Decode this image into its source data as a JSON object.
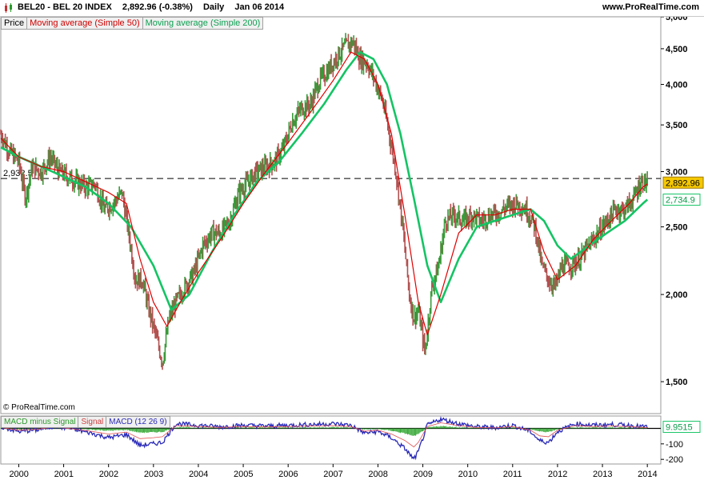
{
  "header": {
    "ticker": "BEL20 - BEL 20 INDEX",
    "quote": "2,892.96 (-0.38%)",
    "period": "Daily",
    "date": "Jan 06 2014",
    "site": "www.ProRealTime.com"
  },
  "legend": {
    "price": "Price",
    "ma50": "Moving average (Simple 50)",
    "ma200": "Moving average (Simple 200)"
  },
  "macd_legend": {
    "hist": "MACD minus Signal",
    "signal": "Signal",
    "macd": "MACD (12 26 9)"
  },
  "copyright": "© ProRealTime.com",
  "colors": {
    "up_candle": "#3a9a3a",
    "down_candle": "#b35050",
    "ma50": "#e00000",
    "ma200": "#14c464",
    "macd": "#2a2ab8",
    "signal": "#e05050",
    "hist": "#3aaa3a"
  },
  "chart_data": {
    "type": "line",
    "title": "BEL20 - BEL 20 INDEX",
    "y_scale": "log",
    "ylim": [
      1350,
      5000
    ],
    "y_ticks": [
      1500,
      2000,
      2500,
      3000,
      3500,
      4000,
      4500,
      5000
    ],
    "y_tick_labels": [
      "1,500",
      "2,000",
      "2,500",
      "3,000",
      "3,500",
      "4,000",
      "4,500",
      "5,000"
    ],
    "x_ticks": [
      2000,
      2001,
      2002,
      2003,
      2004,
      2005,
      2006,
      2007,
      2008,
      2009,
      2010,
      2011,
      2012,
      2013,
      2014
    ],
    "x_tick_labels": [
      "2000",
      "2001",
      "2002",
      "2003",
      "2004",
      "2005",
      "2006",
      "2007",
      "2008",
      "2009",
      "2010",
      "2011",
      "2012",
      "2013",
      "2014"
    ],
    "xlim": [
      1999.6,
      2014.3
    ],
    "reference_line": {
      "value": 2932.5,
      "label": "2,932.5"
    },
    "last_price": {
      "value": 2892.96,
      "label": "2,892.96"
    },
    "last_ma200": {
      "value": 2734.9,
      "label": "2,734.9"
    },
    "series": [
      {
        "name": "Price",
        "x": [
          1999.6,
          1999.8,
          2000.0,
          2000.15,
          2000.3,
          2000.5,
          2000.7,
          2000.9,
          2001.1,
          2001.3,
          2001.5,
          2001.7,
          2001.9,
          2002.1,
          2002.3,
          2002.45,
          2002.6,
          2002.75,
          2002.9,
          2003.05,
          2003.2,
          2003.35,
          2003.5,
          2003.7,
          2003.9,
          2004.1,
          2004.3,
          2004.5,
          2004.7,
          2004.9,
          2005.1,
          2005.3,
          2005.5,
          2005.7,
          2005.9,
          2006.1,
          2006.3,
          2006.5,
          2006.7,
          2006.9,
          2007.1,
          2007.3,
          2007.45,
          2007.6,
          2007.75,
          2007.9,
          2008.1,
          2008.25,
          2008.4,
          2008.55,
          2008.7,
          2008.8,
          2008.9,
          2009.05,
          2009.2,
          2009.35,
          2009.5,
          2009.7,
          2009.9,
          2010.1,
          2010.3,
          2010.5,
          2010.7,
          2010.9,
          2011.1,
          2011.3,
          2011.5,
          2011.65,
          2011.8,
          2011.95,
          2012.1,
          2012.3,
          2012.5,
          2012.7,
          2012.9,
          2013.1,
          2013.3,
          2013.5,
          2013.7,
          2013.85,
          2014.0
        ],
        "y": [
          3400,
          3200,
          3100,
          2750,
          3050,
          3000,
          3150,
          3000,
          2950,
          2900,
          2850,
          2880,
          2650,
          2700,
          2800,
          2450,
          2100,
          2100,
          1900,
          1750,
          1600,
          1850,
          1950,
          2050,
          2150,
          2350,
          2450,
          2450,
          2550,
          2800,
          2900,
          3000,
          3050,
          3100,
          3250,
          3550,
          3700,
          3750,
          4050,
          4200,
          4400,
          4550,
          4600,
          4350,
          4300,
          4100,
          3800,
          3400,
          3000,
          2500,
          2000,
          1850,
          1900,
          1650,
          2050,
          2200,
          2550,
          2600,
          2550,
          2600,
          2550,
          2600,
          2620,
          2680,
          2700,
          2650,
          2500,
          2200,
          2100,
          2050,
          2200,
          2200,
          2250,
          2350,
          2450,
          2550,
          2650,
          2650,
          2750,
          2900,
          2893
        ]
      },
      {
        "name": "Moving average (Simple 50)",
        "x": [
          1999.6,
          2000.0,
          2000.5,
          2001.0,
          2001.5,
          2002.0,
          2002.4,
          2002.7,
          2003.0,
          2003.3,
          2003.6,
          2004.0,
          2004.5,
          2005.0,
          2005.5,
          2006.0,
          2006.5,
          2007.0,
          2007.4,
          2007.7,
          2008.0,
          2008.3,
          2008.6,
          2008.9,
          2009.1,
          2009.4,
          2009.8,
          2010.2,
          2010.6,
          2011.0,
          2011.4,
          2011.7,
          2012.0,
          2012.4,
          2012.8,
          2013.2,
          2013.6,
          2013.9,
          2014.0
        ],
        "y": [
          3350,
          3150,
          3050,
          3000,
          2900,
          2800,
          2700,
          2250,
          1950,
          1800,
          1950,
          2150,
          2400,
          2700,
          3000,
          3300,
          3650,
          4050,
          4450,
          4350,
          4000,
          3400,
          2600,
          1950,
          1750,
          2000,
          2450,
          2600,
          2600,
          2650,
          2650,
          2300,
          2100,
          2200,
          2400,
          2550,
          2700,
          2850,
          2880
        ]
      },
      {
        "name": "Moving average (Simple 200)",
        "x": [
          1999.6,
          2000.0,
          2000.5,
          2001.0,
          2001.5,
          2002.0,
          2002.5,
          2003.0,
          2003.4,
          2003.8,
          2004.3,
          2004.8,
          2005.3,
          2005.8,
          2006.3,
          2006.8,
          2007.3,
          2007.6,
          2007.9,
          2008.2,
          2008.5,
          2008.8,
          2009.1,
          2009.4,
          2009.8,
          2010.2,
          2010.6,
          2011.0,
          2011.4,
          2011.7,
          2012.0,
          2012.3,
          2012.7,
          2013.1,
          2013.5,
          2013.9,
          2014.0
        ],
        "y": [
          3250,
          3150,
          3050,
          2950,
          2850,
          2700,
          2500,
          2200,
          1900,
          2000,
          2300,
          2600,
          2900,
          3100,
          3400,
          3750,
          4200,
          4450,
          4350,
          4000,
          3400,
          2750,
          2200,
          1950,
          2250,
          2500,
          2550,
          2600,
          2650,
          2550,
          2350,
          2250,
          2350,
          2450,
          2550,
          2700,
          2735
        ]
      }
    ],
    "macd": {
      "ylim": [
        -230,
        80
      ],
      "y_ticks": [
        -100,
        -200
      ],
      "y_tick_labels": [
        "-100",
        "-200"
      ],
      "last_value": 9.9515,
      "last_label": "9.9515",
      "x": [
        1999.6,
        2000.0,
        2000.4,
        2000.8,
        2001.2,
        2001.6,
        2002.0,
        2002.4,
        2002.7,
        2003.0,
        2003.2,
        2003.5,
        2004.0,
        2004.5,
        2005.0,
        2005.5,
        2006.0,
        2006.5,
        2007.0,
        2007.4,
        2007.7,
        2008.0,
        2008.3,
        2008.6,
        2008.8,
        2008.9,
        2009.1,
        2009.4,
        2009.8,
        2010.2,
        2010.6,
        2011.0,
        2011.4,
        2011.6,
        2011.8,
        2012.0,
        2012.4,
        2012.8,
        2013.2,
        2013.6,
        2013.9,
        2014.0
      ],
      "values": [
        10,
        -20,
        -10,
        15,
        -5,
        -30,
        -60,
        -40,
        -110,
        -100,
        -90,
        30,
        20,
        10,
        20,
        15,
        20,
        25,
        30,
        20,
        -30,
        -20,
        -60,
        -130,
        -200,
        -150,
        20,
        60,
        30,
        10,
        5,
        20,
        -20,
        -80,
        -90,
        -20,
        30,
        20,
        25,
        20,
        10,
        10
      ]
    }
  }
}
